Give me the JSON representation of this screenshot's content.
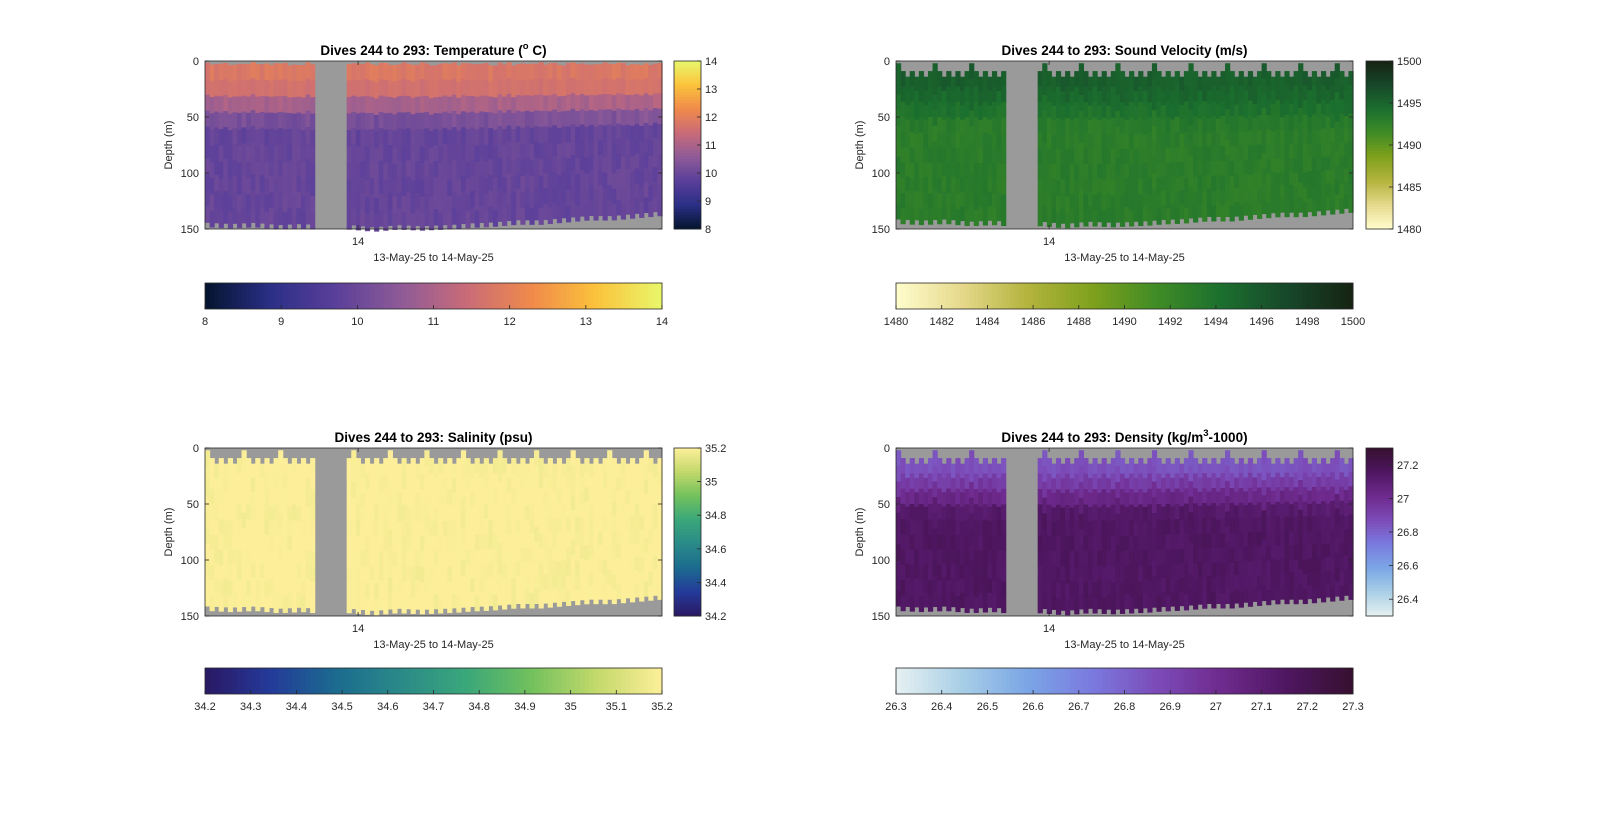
{
  "chart_data": [
    {
      "type": "heatmap",
      "variable": "temperature",
      "title_main": "Dives 244 to 293: Temperature (",
      "title_sup": "o",
      "title_tail": " C)",
      "xlabel": "13-May-25 to 14-May-25",
      "ylabel": "Depth (m)",
      "xtick_labels": [
        "14"
      ],
      "y_ticks": [
        0,
        50,
        100,
        150
      ],
      "ylim": [
        0,
        150
      ],
      "clim": [
        8,
        14
      ],
      "colormap": "thermal",
      "colors": [
        "#04142e",
        "#2b2f86",
        "#5a3f9a",
        "#8e5b97",
        "#c96b78",
        "#f08a4b",
        "#fbc33c",
        "#e9f76b"
      ],
      "colorbar_ticks": [
        8,
        9,
        10,
        11,
        12,
        13,
        14
      ],
      "h_colorbar_ticks": [
        8,
        9,
        10,
        11,
        12,
        13,
        14
      ],
      "surface_value": 11.8,
      "mixed_depth_m": 20,
      "deep_value": 9.9
    },
    {
      "type": "heatmap",
      "variable": "sound_velocity",
      "title_main": "Dives 244 to 293: Sound Velocity (m/s)",
      "xlabel": "13-May-25 to 14-May-25",
      "ylabel": "Depth (m)",
      "xtick_labels": [
        "14"
      ],
      "y_ticks": [
        0,
        50,
        100,
        150
      ],
      "ylim": [
        0,
        150
      ],
      "clim": [
        1480,
        1500
      ],
      "colormap": "speed",
      "colors": [
        "#fffdcd",
        "#e6d98c",
        "#b4b43e",
        "#7fa11c",
        "#3f8c26",
        "#1b6f2e",
        "#17472a",
        "#172313"
      ],
      "colorbar_ticks": [
        1480,
        1485,
        1490,
        1495,
        1500
      ],
      "h_colorbar_ticks": [
        1480,
        1482,
        1484,
        1486,
        1488,
        1490,
        1492,
        1494,
        1496,
        1498,
        1500
      ],
      "surface_value": 1495.5,
      "mixed_depth_m": 20,
      "deep_value": 1493
    },
    {
      "type": "heatmap",
      "variable": "salinity",
      "title_main": "Dives 244 to 293: Salinity (psu)",
      "xlabel": "13-May-25 to 14-May-25",
      "ylabel": "Depth (m)",
      "xtick_labels": [
        "14"
      ],
      "y_ticks": [
        0,
        50,
        100,
        150
      ],
      "ylim": [
        0,
        150
      ],
      "clim": [
        34.2,
        35.2
      ],
      "colormap": "haline",
      "colors": [
        "#2a1863",
        "#243a9a",
        "#1b6b8f",
        "#2a8a88",
        "#3aa77a",
        "#73c15d",
        "#c3d96b",
        "#fdef9a"
      ],
      "colorbar_ticks": [
        34.2,
        34.4,
        34.6,
        34.8,
        35,
        35.2
      ],
      "h_colorbar_ticks": [
        34.2,
        34.3,
        34.4,
        34.5,
        34.6,
        34.7,
        34.8,
        34.9,
        35,
        35.1,
        35.2
      ],
      "surface_value": 35.2,
      "mixed_depth_m": 0,
      "deep_value": 35.2
    },
    {
      "type": "heatmap",
      "variable": "density",
      "title_main": "Dives 244 to 293: Density (kg/m",
      "title_sup": "3",
      "title_tail": "-1000)",
      "xlabel": "13-May-25 to 14-May-25",
      "ylabel": "Depth (m)",
      "xtick_labels": [
        "14"
      ],
      "y_ticks": [
        0,
        50,
        100,
        150
      ],
      "ylim": [
        0,
        150
      ],
      "clim": [
        26.3,
        27.3
      ],
      "colormap": "dense",
      "colors": [
        "#e6f1f1",
        "#a9cfe6",
        "#7aa6e6",
        "#7a7ade",
        "#7c4bb8",
        "#6e2a8d",
        "#4e1660",
        "#36102f"
      ],
      "colorbar_ticks": [
        26.4,
        26.6,
        26.8,
        27,
        27.2
      ],
      "h_colorbar_ticks": [
        26.3,
        26.4,
        26.5,
        26.6,
        26.7,
        26.8,
        26.9,
        27,
        27.1,
        27.2,
        27.3
      ],
      "surface_value": 26.85,
      "mixed_depth_m": 20,
      "deep_value": 27.15
    }
  ],
  "profiles": {
    "n_columns": 100,
    "surface_gap_m": [
      2,
      9,
      14,
      9,
      14,
      9,
      14,
      9
    ],
    "bottom_depth_m": [
      145,
      146,
      145,
      147,
      146,
      148,
      147,
      149,
      147,
      148,
      147,
      146,
      146,
      145,
      146,
      145,
      144,
      145,
      144,
      143
    ],
    "gap_start_col": 24,
    "gap_end_col": 30
  },
  "colors": {
    "missing": "#9a9a9a",
    "axis": "#262626"
  }
}
